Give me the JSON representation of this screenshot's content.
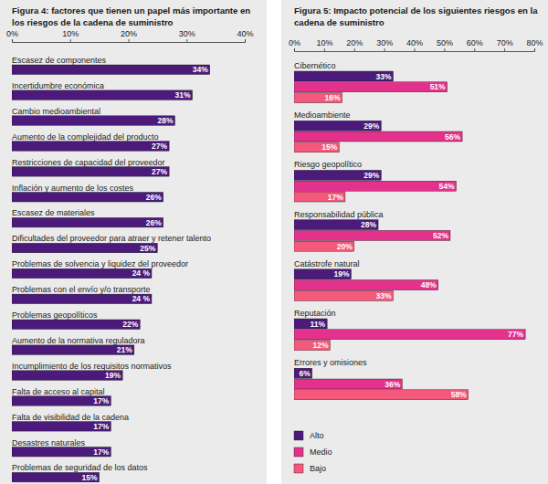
{
  "chart_data": [
    {
      "type": "bar",
      "title": "Figura 4: factores que tienen un papel más importante en los riesgos de la cadena de suministro",
      "orientation": "horizontal",
      "categories": [
        "Escasez de componentes",
        "Incertidumbre económica",
        "Cambio medioambiental",
        "Aumento de la complejidad del producto",
        "Restricciones de capacidad del proveedor",
        "Inflación y aumento de los costes",
        "Escasez de materiales",
        "Dificultades del proveedor para atraer y retener talento",
        "Problemas de solvencia y liquidez del proveedor",
        "Problemas con el envío y/o transporte",
        "Problemas geopolíticos",
        "Aumento de la normativa reguladora",
        "Incumplimiento de los requisitos normativos",
        "Falta de acceso al capital",
        "Falta de visibilidad de la cadena",
        "Desastres naturales",
        "Problemas de seguridad de los datos"
      ],
      "values": [
        34,
        31,
        28,
        27,
        27,
        26,
        26,
        25,
        24,
        24,
        22,
        21,
        19,
        17,
        17,
        17,
        15
      ],
      "value_labels": [
        "34%",
        "31%",
        "28%",
        "27%",
        "27%",
        "26%",
        "26%",
        "25%",
        "24 %",
        "24 %",
        "22%",
        "21%",
        "19%",
        "17%",
        "17%",
        "17%",
        "15%"
      ],
      "color": "#4b1a7a",
      "xlim": [
        0,
        40
      ],
      "xticks": [
        {
          "value": 0,
          "label": "0%"
        },
        {
          "value": 10,
          "label": "10%"
        },
        {
          "value": 20,
          "label": "20%"
        },
        {
          "value": 30,
          "label": "30%"
        },
        {
          "value": 40,
          "label": "40%"
        }
      ],
      "grid": false,
      "data_labels": true
    },
    {
      "type": "bar",
      "title": "Figura 5: Impacto potencial de los siguientes riesgos en la cadena de suministro",
      "orientation": "horizontal",
      "categories": [
        "Cibernético",
        "Medioambiente",
        "Riesgo geopolítico",
        "Responsabilidad pública",
        "Catástrofe natural",
        "Reputación",
        "Errores y omisiones"
      ],
      "series": [
        {
          "name": "Alto",
          "color": "#4b1a7a",
          "values": [
            33,
            29,
            29,
            28,
            19,
            11,
            6
          ],
          "value_labels": [
            "33%",
            "29%",
            "29%",
            "28%",
            "19%",
            "11%",
            "6%"
          ]
        },
        {
          "name": "Medio",
          "color": "#e3318c",
          "values": [
            51,
            56,
            54,
            52,
            48,
            77,
            36
          ],
          "value_labels": [
            "51%",
            "56%",
            "54%",
            "52%",
            "48%",
            "77%",
            "36%"
          ]
        },
        {
          "name": "Bajo",
          "color": "#f4587a",
          "values": [
            16,
            15,
            17,
            20,
            33,
            12,
            58
          ],
          "value_labels": [
            "16%",
            "15%",
            "17%",
            "20%",
            "33%",
            "12%",
            "58%"
          ]
        }
      ],
      "xlim": [
        0,
        80
      ],
      "xticks": [
        {
          "value": 0,
          "label": "0%"
        },
        {
          "value": 10,
          "label": "10%"
        },
        {
          "value": 20,
          "label": "20%"
        },
        {
          "value": 30,
          "label": "30%"
        },
        {
          "value": 40,
          "label": "40%"
        },
        {
          "value": 50,
          "label": "50%"
        },
        {
          "value": 60,
          "label": "60%"
        },
        {
          "value": 70,
          "label": "70%"
        },
        {
          "value": 80,
          "label": "80%"
        }
      ],
      "grid": false,
      "legend": "bottom-left",
      "data_labels": true
    }
  ]
}
